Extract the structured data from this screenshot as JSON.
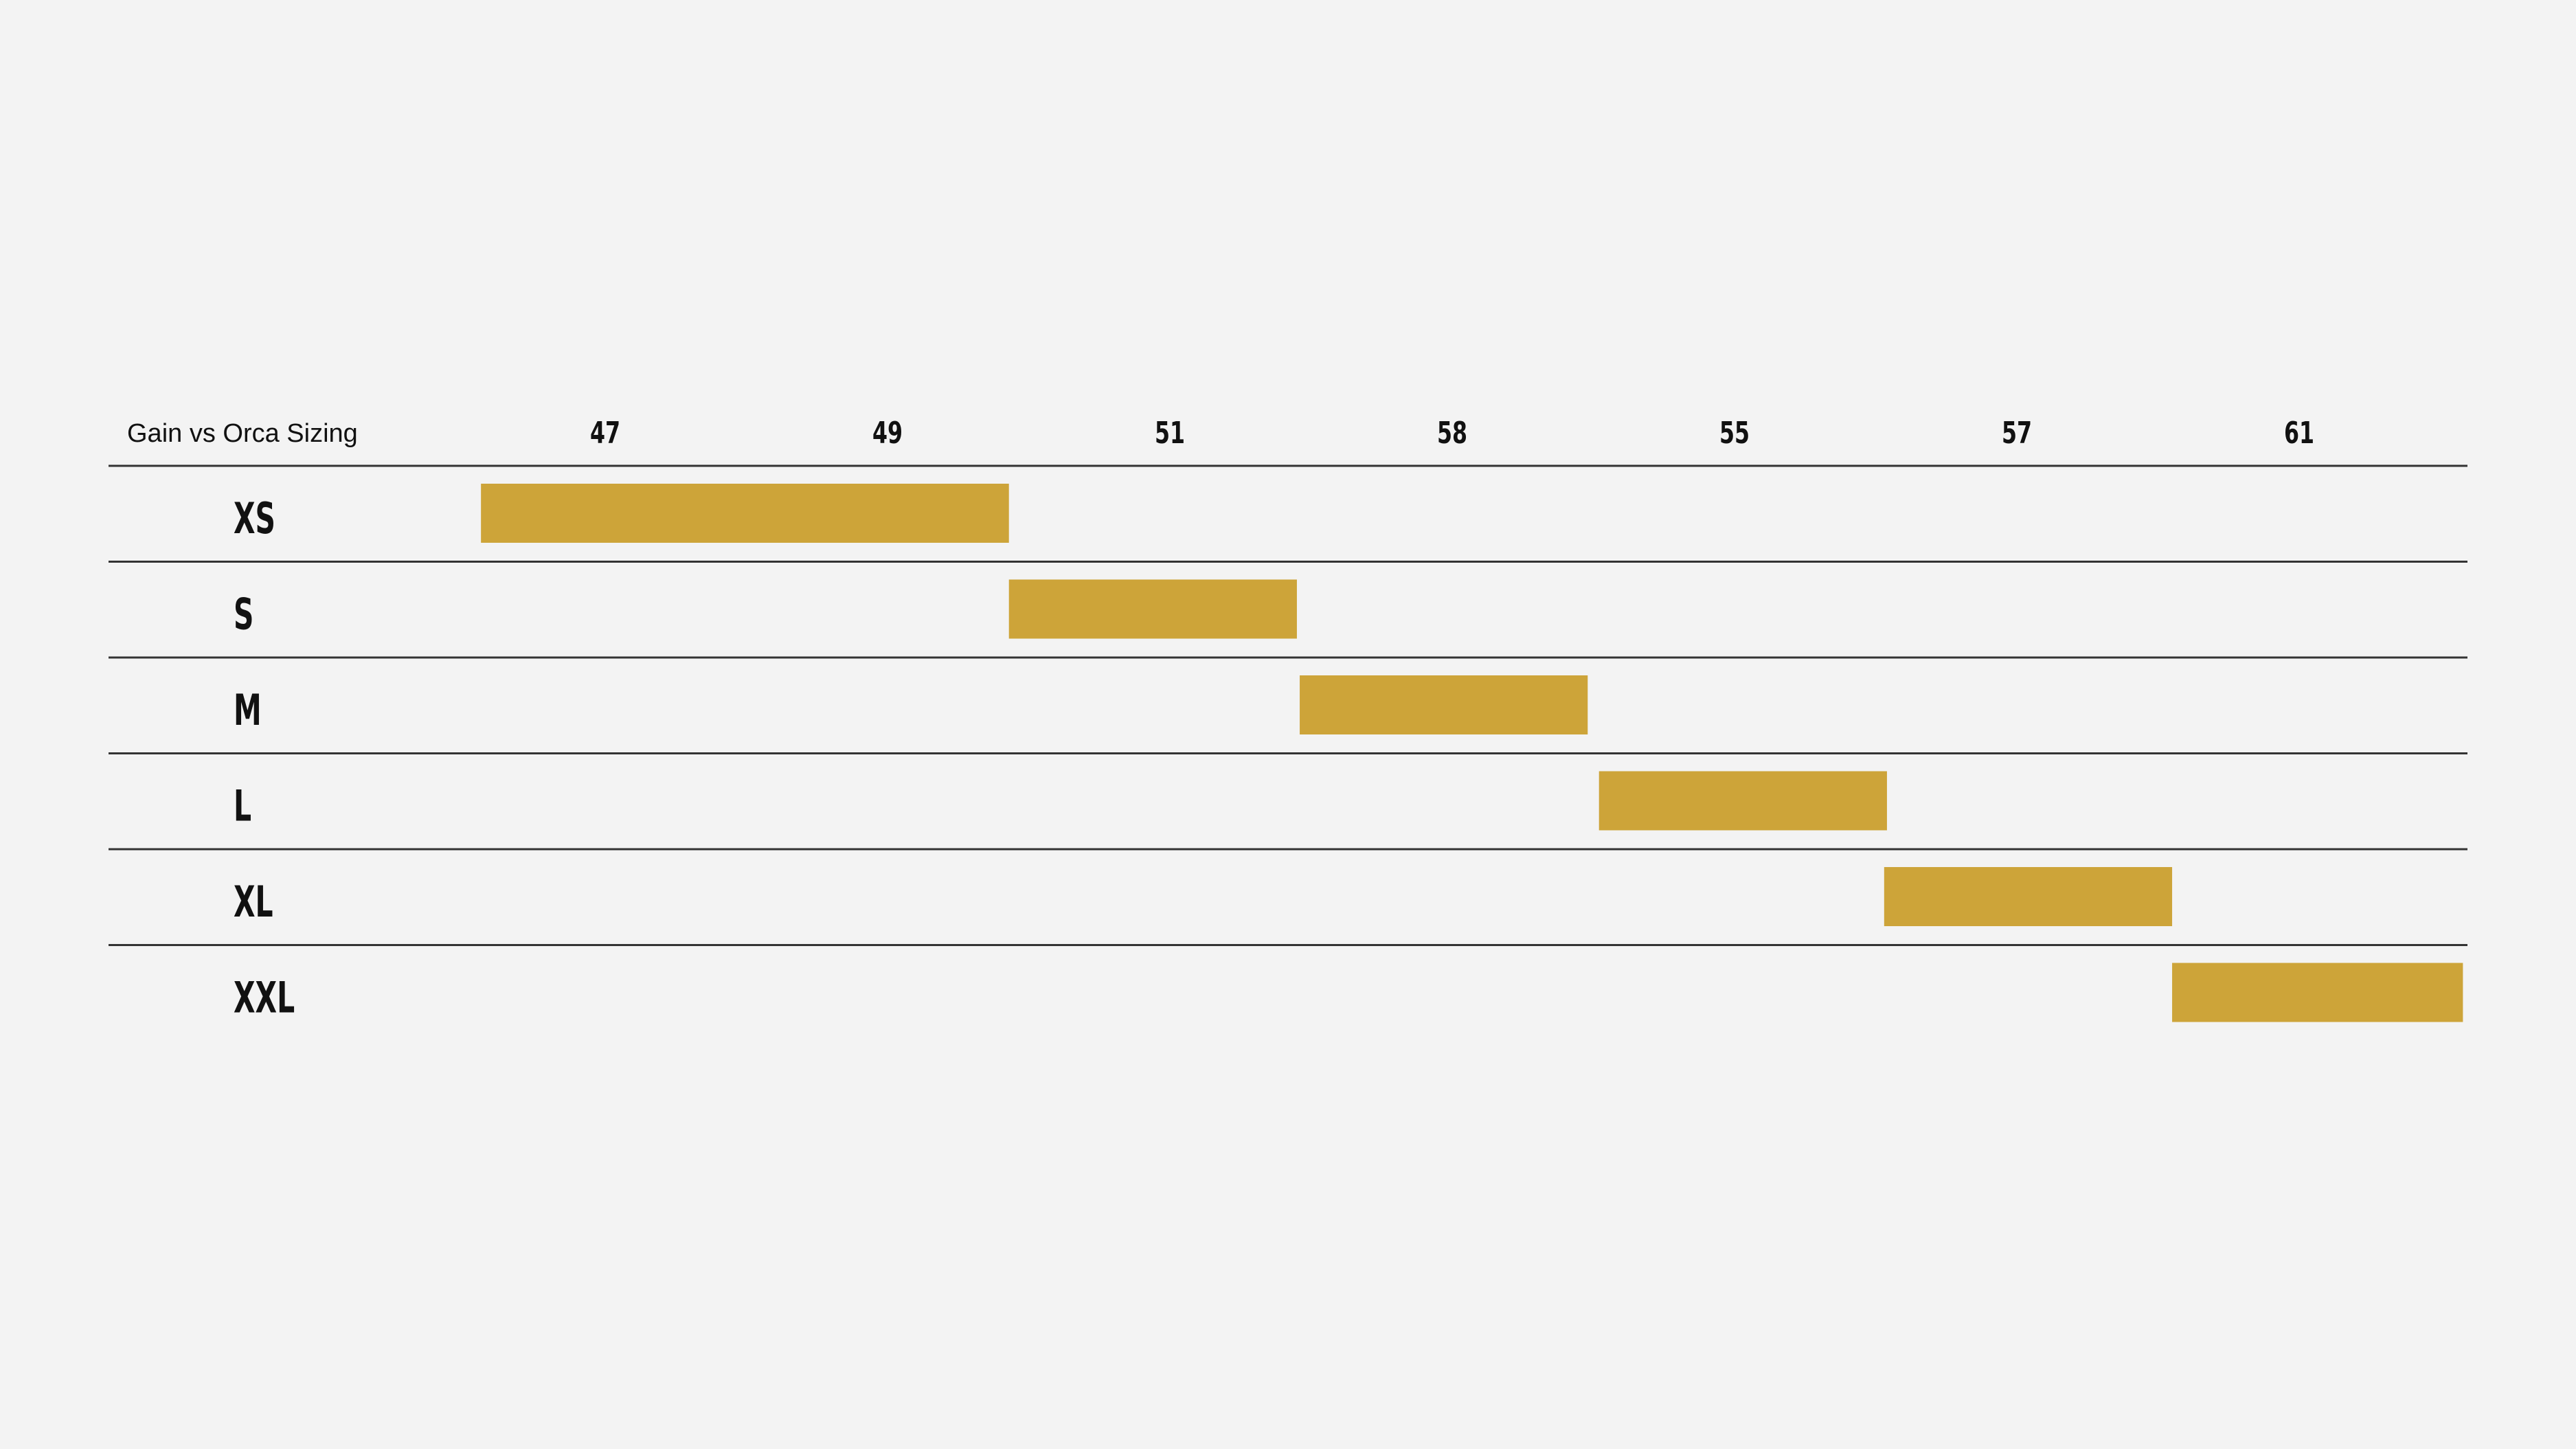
{
  "chart_data": {
    "type": "bar",
    "title": "Gain vs Orca Sizing",
    "x_ticks": [
      "47",
      "49",
      "51",
      "58",
      "55",
      "57",
      "61"
    ],
    "grid": "horizontal row dividers",
    "legend": "none",
    "bar_color": "#cda439",
    "series": [
      {
        "categories": [
          "XS",
          "S",
          "M",
          "L",
          "XL",
          "XXL"
        ],
        "ranges": [
          {
            "size": "XS",
            "start_tick": -0.44,
            "end_tick": 1.43
          },
          {
            "size": "S",
            "start_tick": 1.43,
            "end_tick": 2.45
          },
          {
            "size": "M",
            "start_tick": 2.46,
            "end_tick": 3.48
          },
          {
            "size": "L",
            "start_tick": 3.52,
            "end_tick": 4.54
          },
          {
            "size": "XL",
            "start_tick": 4.53,
            "end_tick": 5.55
          },
          {
            "size": "XXL",
            "start_tick": 5.55,
            "end_tick": 6.58
          }
        ]
      }
    ]
  }
}
